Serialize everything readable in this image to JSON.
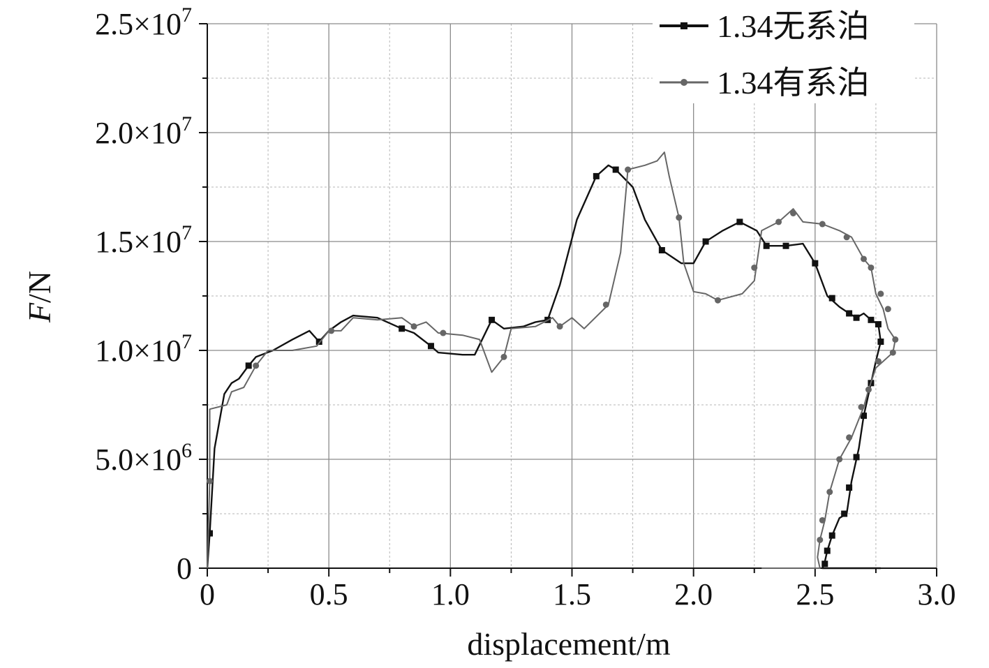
{
  "chart_data": {
    "type": "line",
    "title": "",
    "xlabel": "displacement/m",
    "ylabel_italic": "F",
    "ylabel_unit": "/N",
    "xlim": [
      0,
      3.0
    ],
    "ylim": [
      0,
      25000000
    ],
    "x_ticks": [
      {
        "value": 0,
        "label": "0"
      },
      {
        "value": 0.5,
        "label": "0.5"
      },
      {
        "value": 1.0,
        "label": "1.0"
      },
      {
        "value": 1.5,
        "label": "1.5"
      },
      {
        "value": 2.0,
        "label": "2.0"
      },
      {
        "value": 2.5,
        "label": "2.5"
      },
      {
        "value": 3.0,
        "label": "3.0"
      }
    ],
    "y_ticks": [
      {
        "value": 0,
        "mantissa": "0",
        "exp": ""
      },
      {
        "value": 5000000,
        "mantissa": "5.0×10",
        "exp": "6"
      },
      {
        "value": 10000000,
        "mantissa": "1.0×10",
        "exp": "7"
      },
      {
        "value": 15000000,
        "mantissa": "1.5×10",
        "exp": "7"
      },
      {
        "value": 20000000,
        "mantissa": "2.0×10",
        "exp": "7"
      },
      {
        "value": 25000000,
        "mantissa": "2.5×10",
        "exp": "7"
      }
    ],
    "grid": true,
    "legend_position": "top-right",
    "series": [
      {
        "name": "1.34无系泊",
        "color": "#111111",
        "marker": "square",
        "points": [
          [
            0.0,
            0
          ],
          [
            0.01,
            1600000
          ],
          [
            0.03,
            5500000
          ],
          [
            0.07,
            8000000
          ],
          [
            0.1,
            8500000
          ],
          [
            0.13,
            8700000
          ],
          [
            0.17,
            9300000
          ],
          [
            0.2,
            9700000
          ],
          [
            0.27,
            10000000
          ],
          [
            0.35,
            10500000
          ],
          [
            0.42,
            10900000
          ],
          [
            0.46,
            10400000
          ],
          [
            0.5,
            10900000
          ],
          [
            0.55,
            11300000
          ],
          [
            0.6,
            11600000
          ],
          [
            0.7,
            11500000
          ],
          [
            0.8,
            11000000
          ],
          [
            0.85,
            10800000
          ],
          [
            0.92,
            10200000
          ],
          [
            0.95,
            9900000
          ],
          [
            1.05,
            9800000
          ],
          [
            1.1,
            9800000
          ],
          [
            1.17,
            11400000
          ],
          [
            1.22,
            11000000
          ],
          [
            1.3,
            11100000
          ],
          [
            1.35,
            11300000
          ],
          [
            1.4,
            11400000
          ],
          [
            1.45,
            13000000
          ],
          [
            1.52,
            16000000
          ],
          [
            1.6,
            18000000
          ],
          [
            1.65,
            18500000
          ],
          [
            1.68,
            18300000
          ],
          [
            1.75,
            17500000
          ],
          [
            1.8,
            16000000
          ],
          [
            1.87,
            14600000
          ],
          [
            1.95,
            14000000
          ],
          [
            2.0,
            14000000
          ],
          [
            2.05,
            15000000
          ],
          [
            2.12,
            15500000
          ],
          [
            2.19,
            15900000
          ],
          [
            2.26,
            15500000
          ],
          [
            2.3,
            14800000
          ],
          [
            2.38,
            14800000
          ],
          [
            2.45,
            14900000
          ],
          [
            2.5,
            14000000
          ],
          [
            2.55,
            12500000
          ],
          [
            2.6,
            12000000
          ],
          [
            2.64,
            11700000
          ],
          [
            2.67,
            11500000
          ],
          [
            2.7,
            11700000
          ],
          [
            2.73,
            11400000
          ],
          [
            2.76,
            11200000
          ],
          [
            2.77,
            10400000
          ],
          [
            2.75,
            9500000
          ],
          [
            2.73,
            8500000
          ],
          [
            2.7,
            7000000
          ],
          [
            2.68,
            5500000
          ],
          [
            2.65,
            4000000
          ],
          [
            2.63,
            2500000
          ],
          [
            2.6,
            2300000
          ],
          [
            2.57,
            1500000
          ],
          [
            2.55,
            800000
          ],
          [
            2.54,
            300000
          ],
          [
            2.53,
            0
          ],
          [
            2.77,
            0
          ]
        ],
        "marker_points": [
          [
            0.01,
            1600000
          ],
          [
            0.17,
            9300000
          ],
          [
            0.46,
            10400000
          ],
          [
            0.8,
            11000000
          ],
          [
            0.92,
            10200000
          ],
          [
            1.17,
            11400000
          ],
          [
            1.4,
            11400000
          ],
          [
            1.6,
            18000000
          ],
          [
            1.68,
            18300000
          ],
          [
            1.87,
            14600000
          ],
          [
            2.05,
            15000000
          ],
          [
            2.19,
            15900000
          ],
          [
            2.3,
            14800000
          ],
          [
            2.38,
            14800000
          ],
          [
            2.5,
            14000000
          ],
          [
            2.57,
            12400000
          ],
          [
            2.64,
            11700000
          ],
          [
            2.67,
            11500000
          ],
          [
            2.73,
            11400000
          ],
          [
            2.76,
            11200000
          ],
          [
            2.77,
            10400000
          ],
          [
            2.73,
            8500000
          ],
          [
            2.7,
            7000000
          ],
          [
            2.67,
            5100000
          ],
          [
            2.64,
            3700000
          ],
          [
            2.62,
            2500000
          ],
          [
            2.57,
            1500000
          ],
          [
            2.55,
            800000
          ],
          [
            2.54,
            200000
          ]
        ]
      },
      {
        "name": "1.34有系泊",
        "color": "#666666",
        "marker": "circle",
        "points": [
          [
            0.0,
            0
          ],
          [
            0.01,
            4000000
          ],
          [
            0.01,
            7300000
          ],
          [
            0.08,
            7500000
          ],
          [
            0.1,
            8100000
          ],
          [
            0.15,
            8300000
          ],
          [
            0.2,
            9300000
          ],
          [
            0.25,
            10000000
          ],
          [
            0.35,
            10000000
          ],
          [
            0.45,
            10200000
          ],
          [
            0.5,
            10900000
          ],
          [
            0.55,
            10900000
          ],
          [
            0.6,
            11500000
          ],
          [
            0.7,
            11400000
          ],
          [
            0.8,
            11500000
          ],
          [
            0.85,
            11100000
          ],
          [
            0.9,
            11300000
          ],
          [
            0.95,
            10800000
          ],
          [
            1.05,
            10700000
          ],
          [
            1.12,
            10500000
          ],
          [
            1.17,
            9000000
          ],
          [
            1.22,
            9700000
          ],
          [
            1.25,
            11000000
          ],
          [
            1.35,
            11100000
          ],
          [
            1.42,
            11500000
          ],
          [
            1.45,
            11100000
          ],
          [
            1.5,
            11500000
          ],
          [
            1.55,
            11000000
          ],
          [
            1.65,
            12100000
          ],
          [
            1.7,
            14500000
          ],
          [
            1.73,
            18300000
          ],
          [
            1.8,
            18500000
          ],
          [
            1.85,
            18700000
          ],
          [
            1.88,
            19100000
          ],
          [
            1.9,
            18000000
          ],
          [
            1.94,
            16100000
          ],
          [
            1.96,
            14000000
          ],
          [
            2.0,
            12700000
          ],
          [
            2.05,
            12600000
          ],
          [
            2.1,
            12300000
          ],
          [
            2.2,
            12600000
          ],
          [
            2.25,
            13200000
          ],
          [
            2.28,
            15500000
          ],
          [
            2.35,
            15900000
          ],
          [
            2.41,
            16500000
          ],
          [
            2.45,
            15900000
          ],
          [
            2.53,
            15800000
          ],
          [
            2.6,
            15500000
          ],
          [
            2.65,
            15200000
          ],
          [
            2.7,
            14200000
          ],
          [
            2.73,
            13800000
          ],
          [
            2.75,
            12600000
          ],
          [
            2.78,
            11900000
          ],
          [
            2.8,
            11000000
          ],
          [
            2.83,
            10500000
          ],
          [
            2.82,
            9900000
          ],
          [
            2.78,
            9500000
          ],
          [
            2.75,
            9200000
          ],
          [
            2.72,
            8200000
          ],
          [
            2.7,
            7400000
          ],
          [
            2.65,
            6000000
          ],
          [
            2.6,
            5000000
          ],
          [
            2.56,
            3500000
          ],
          [
            2.54,
            2200000
          ],
          [
            2.52,
            1300000
          ],
          [
            2.51,
            500000
          ],
          [
            2.52,
            0
          ],
          [
            2.28,
            0
          ]
        ],
        "marker_points": [
          [
            0.01,
            4000000
          ],
          [
            0.2,
            9300000
          ],
          [
            0.51,
            10900000
          ],
          [
            0.85,
            11100000
          ],
          [
            0.97,
            10800000
          ],
          [
            1.22,
            9700000
          ],
          [
            1.45,
            11100000
          ],
          [
            1.64,
            12100000
          ],
          [
            1.73,
            18300000
          ],
          [
            1.94,
            16100000
          ],
          [
            2.1,
            12300000
          ],
          [
            2.25,
            13800000
          ],
          [
            2.35,
            15900000
          ],
          [
            2.41,
            16300000
          ],
          [
            2.53,
            15800000
          ],
          [
            2.63,
            15200000
          ],
          [
            2.7,
            14200000
          ],
          [
            2.73,
            13800000
          ],
          [
            2.77,
            12600000
          ],
          [
            2.8,
            11900000
          ],
          [
            2.83,
            10500000
          ],
          [
            2.82,
            9900000
          ],
          [
            2.76,
            9500000
          ],
          [
            2.72,
            8200000
          ],
          [
            2.69,
            7400000
          ],
          [
            2.64,
            6000000
          ],
          [
            2.6,
            5000000
          ],
          [
            2.56,
            3500000
          ],
          [
            2.53,
            2200000
          ],
          [
            2.52,
            1300000
          ]
        ]
      }
    ]
  }
}
